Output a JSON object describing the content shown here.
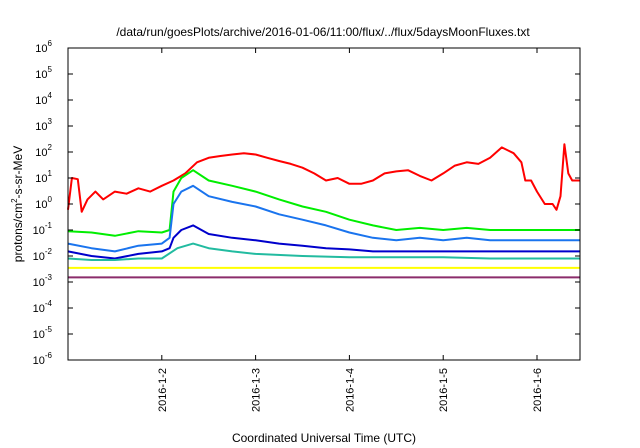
{
  "chart_data": {
    "type": "line",
    "title": "/data/run/goesPlots/archive/2016-01-06/11:00/flux/../flux/5daysMoonFluxes.txt",
    "xlabel": "Coordinated Universal Time (UTC)",
    "ylabel": "protons/cm2-s-sr-MeV",
    "ylabel_parts": [
      "protons/cm",
      "2",
      "-s-sr-MeV"
    ],
    "y_scale": "log",
    "ylim": [
      1e-06,
      1000000.0
    ],
    "y_ticks": [
      {
        "mantissa": "10",
        "exp": "-6"
      },
      {
        "mantissa": "10",
        "exp": "-5"
      },
      {
        "mantissa": "10",
        "exp": "-4"
      },
      {
        "mantissa": "10",
        "exp": "-3"
      },
      {
        "mantissa": "10",
        "exp": "-2"
      },
      {
        "mantissa": "10",
        "exp": "-1"
      },
      {
        "mantissa": "10",
        "exp": "0"
      },
      {
        "mantissa": "10",
        "exp": "1"
      },
      {
        "mantissa": "10",
        "exp": "2"
      },
      {
        "mantissa": "10",
        "exp": "3"
      },
      {
        "mantissa": "10",
        "exp": "4"
      },
      {
        "mantissa": "10",
        "exp": "5"
      },
      {
        "mantissa": "10",
        "exp": "6"
      }
    ],
    "xlim": [
      "2016-01-01T00:00",
      "2016-01-06T11:00"
    ],
    "x_ticks": [
      {
        "label": "2016-1-2",
        "x": "2016-01-02T00:00"
      },
      {
        "label": "2016-1-3",
        "x": "2016-01-03T00:00"
      },
      {
        "label": "2016-1-4",
        "x": "2016-01-04T00:00"
      },
      {
        "label": "2016-1-5",
        "x": "2016-01-05T00:00"
      },
      {
        "label": "2016-1-6",
        "x": "2016-01-06T00:00"
      }
    ],
    "grid": false,
    "legend": "none",
    "series": [
      {
        "color": "#ff0000",
        "x": [
          "2016-01-01T00:00",
          "2016-01-01T01:00",
          "2016-01-01T02:30",
          "2016-01-01T03:30",
          "2016-01-01T05:00",
          "2016-01-01T07:00",
          "2016-01-01T09:00",
          "2016-01-01T12:00",
          "2016-01-01T15:00",
          "2016-01-01T18:00",
          "2016-01-01T21:00",
          "2016-01-02T00:00",
          "2016-01-02T03:00",
          "2016-01-02T06:00",
          "2016-01-02T09:00",
          "2016-01-02T12:00",
          "2016-01-02T15:00",
          "2016-01-02T18:00",
          "2016-01-02T21:00",
          "2016-01-03T00:00",
          "2016-01-03T03:00",
          "2016-01-03T06:00",
          "2016-01-03T09:00",
          "2016-01-03T12:00",
          "2016-01-03T15:00",
          "2016-01-03T18:00",
          "2016-01-03T21:00",
          "2016-01-04T00:00",
          "2016-01-04T03:00",
          "2016-01-04T06:00",
          "2016-01-04T09:00",
          "2016-01-04T12:00",
          "2016-01-04T15:00",
          "2016-01-04T18:00",
          "2016-01-04T21:00",
          "2016-01-05T00:00",
          "2016-01-05T03:00",
          "2016-01-05T06:00",
          "2016-01-05T09:00",
          "2016-01-05T12:00",
          "2016-01-05T15:00",
          "2016-01-05T18:00",
          "2016-01-05T20:00",
          "2016-01-05T21:00",
          "2016-01-05T22:30",
          "2016-01-06T00:00",
          "2016-01-06T02:00",
          "2016-01-06T04:00",
          "2016-01-06T05:00",
          "2016-01-06T06:00",
          "2016-01-06T07:00",
          "2016-01-06T08:00",
          "2016-01-06T09:00",
          "2016-01-06T11:00"
        ],
        "values": [
          0.6,
          10,
          9,
          0.5,
          1.5,
          3,
          1.5,
          3,
          2.5,
          4,
          3,
          5,
          8,
          15,
          40,
          60,
          70,
          80,
          90,
          80,
          60,
          45,
          35,
          25,
          15,
          8,
          10,
          6,
          6,
          8,
          15,
          18,
          20,
          12,
          8,
          15,
          30,
          40,
          35,
          60,
          150,
          90,
          40,
          8,
          8,
          3,
          1,
          1,
          0.6,
          2,
          200,
          15,
          8,
          8
        ]
      },
      {
        "color": "#00ee00",
        "x": [
          "2016-01-01T00:00",
          "2016-01-01T06:00",
          "2016-01-01T12:00",
          "2016-01-01T18:00",
          "2016-01-02T00:00",
          "2016-01-02T02:00",
          "2016-01-02T03:00",
          "2016-01-02T05:00",
          "2016-01-02T08:00",
          "2016-01-02T12:00",
          "2016-01-02T18:00",
          "2016-01-03T00:00",
          "2016-01-03T06:00",
          "2016-01-03T12:00",
          "2016-01-03T18:00",
          "2016-01-04T00:00",
          "2016-01-04T06:00",
          "2016-01-04T12:00",
          "2016-01-04T18:00",
          "2016-01-05T00:00",
          "2016-01-05T06:00",
          "2016-01-05T12:00",
          "2016-01-05T18:00",
          "2016-01-06T00:00",
          "2016-01-06T06:00",
          "2016-01-06T11:00"
        ],
        "values": [
          0.09,
          0.08,
          0.06,
          0.09,
          0.08,
          0.1,
          3,
          10,
          20,
          8,
          5,
          3,
          1.5,
          0.8,
          0.5,
          0.25,
          0.15,
          0.1,
          0.12,
          0.1,
          0.12,
          0.1,
          0.1,
          0.1,
          0.1,
          0.1
        ]
      },
      {
        "color": "#1a74ee",
        "x": [
          "2016-01-01T00:00",
          "2016-01-01T06:00",
          "2016-01-01T12:00",
          "2016-01-01T18:00",
          "2016-01-02T00:00",
          "2016-01-02T02:00",
          "2016-01-02T03:00",
          "2016-01-02T05:00",
          "2016-01-02T08:00",
          "2016-01-02T12:00",
          "2016-01-02T18:00",
          "2016-01-03T00:00",
          "2016-01-03T06:00",
          "2016-01-03T12:00",
          "2016-01-03T18:00",
          "2016-01-04T00:00",
          "2016-01-04T06:00",
          "2016-01-04T12:00",
          "2016-01-04T18:00",
          "2016-01-05T00:00",
          "2016-01-05T06:00",
          "2016-01-05T12:00",
          "2016-01-05T18:00",
          "2016-01-06T00:00",
          "2016-01-06T06:00",
          "2016-01-06T11:00"
        ],
        "values": [
          0.03,
          0.02,
          0.015,
          0.025,
          0.03,
          0.05,
          1,
          3,
          5,
          2,
          1.2,
          0.8,
          0.4,
          0.25,
          0.15,
          0.08,
          0.05,
          0.04,
          0.05,
          0.04,
          0.05,
          0.04,
          0.04,
          0.04,
          0.04,
          0.04
        ]
      },
      {
        "color": "#0000cc",
        "x": [
          "2016-01-01T00:00",
          "2016-01-01T06:00",
          "2016-01-01T12:00",
          "2016-01-01T18:00",
          "2016-01-02T00:00",
          "2016-01-02T02:00",
          "2016-01-02T03:00",
          "2016-01-02T05:00",
          "2016-01-02T08:00",
          "2016-01-02T12:00",
          "2016-01-02T18:00",
          "2016-01-03T00:00",
          "2016-01-03T06:00",
          "2016-01-03T12:00",
          "2016-01-03T18:00",
          "2016-01-04T00:00",
          "2016-01-04T06:00",
          "2016-01-04T12:00",
          "2016-01-04T18:00",
          "2016-01-05T00:00",
          "2016-01-05T06:00",
          "2016-01-05T12:00",
          "2016-01-05T18:00",
          "2016-01-06T00:00",
          "2016-01-06T06:00",
          "2016-01-06T11:00"
        ],
        "values": [
          0.015,
          0.01,
          0.008,
          0.012,
          0.015,
          0.02,
          0.05,
          0.1,
          0.15,
          0.07,
          0.05,
          0.04,
          0.03,
          0.025,
          0.02,
          0.018,
          0.015,
          0.015,
          0.015,
          0.015,
          0.015,
          0.015,
          0.015,
          0.015,
          0.015,
          0.015
        ]
      },
      {
        "color": "#22bba0",
        "x": [
          "2016-01-01T00:00",
          "2016-01-01T06:00",
          "2016-01-01T12:00",
          "2016-01-01T18:00",
          "2016-01-02T00:00",
          "2016-01-02T04:00",
          "2016-01-02T08:00",
          "2016-01-02T12:00",
          "2016-01-02T18:00",
          "2016-01-03T00:00",
          "2016-01-03T12:00",
          "2016-01-04T00:00",
          "2016-01-04T12:00",
          "2016-01-05T00:00",
          "2016-01-05T12:00",
          "2016-01-06T00:00",
          "2016-01-06T11:00"
        ],
        "values": [
          0.008,
          0.007,
          0.007,
          0.008,
          0.008,
          0.02,
          0.03,
          0.02,
          0.015,
          0.012,
          0.01,
          0.009,
          0.009,
          0.009,
          0.008,
          0.008,
          0.008
        ]
      },
      {
        "color": "#ffff00",
        "x": [
          "2016-01-01T00:00",
          "2016-01-02T00:00",
          "2016-01-03T00:00",
          "2016-01-04T00:00",
          "2016-01-05T00:00",
          "2016-01-06T00:00",
          "2016-01-06T11:00"
        ],
        "values": [
          0.0035,
          0.0035,
          0.0035,
          0.0035,
          0.0035,
          0.0035,
          0.0035
        ]
      },
      {
        "color": "#8b2c6b",
        "x": [
          "2016-01-01T00:00",
          "2016-01-02T00:00",
          "2016-01-03T00:00",
          "2016-01-04T00:00",
          "2016-01-05T00:00",
          "2016-01-06T00:00",
          "2016-01-06T11:00"
        ],
        "values": [
          0.0015,
          0.0015,
          0.0015,
          0.0015,
          0.0015,
          0.0015,
          0.0015
        ]
      }
    ]
  }
}
